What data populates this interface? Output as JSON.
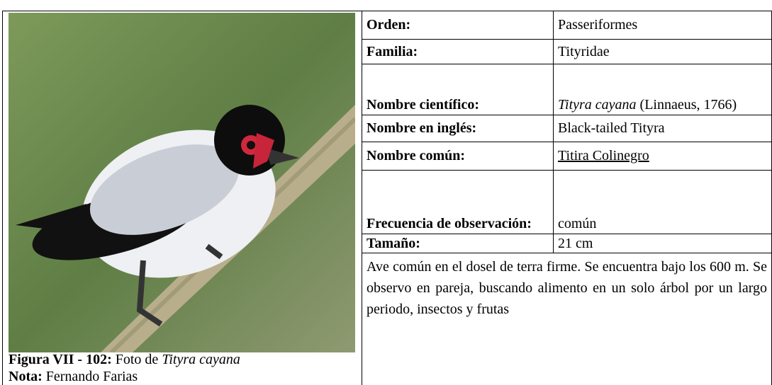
{
  "figure": {
    "caption_label": "Figura VII - 102:",
    "caption_text": "Foto de",
    "caption_species": "Tityra cayana",
    "note_label": "Nota:",
    "note_text": "Fernando Farias"
  },
  "table": {
    "rows": [
      {
        "label": "Orden:",
        "value": "Passeriformes"
      },
      {
        "label": "Familia:",
        "value": "Tityridae"
      },
      {
        "label": "Nombre científico:",
        "value_italic": "Tityra cayana",
        "value": "(Linnaeus, 1766)"
      },
      {
        "label": "Nombre en inglés:",
        "value": "Black-tailed Tityra"
      },
      {
        "label": "Nombre común:",
        "value": "Titira Colinegro"
      },
      {
        "label": "Frecuencia de observación:",
        "value": "común"
      },
      {
        "label": "Tamaño:",
        "value": "21 cm"
      }
    ],
    "description": "Ave común en el dosel de terra firme. Se encuentra bajo los 600 m. Se observo en pareja, buscando alimento en un solo árbol por un largo periodo, insectos y frutas"
  }
}
